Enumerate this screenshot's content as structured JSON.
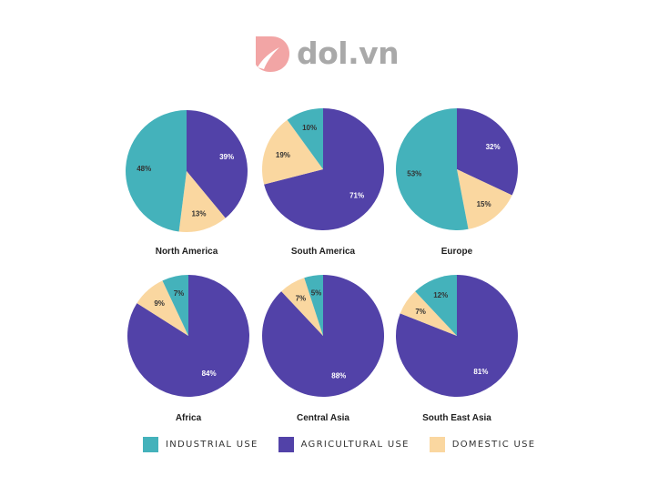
{
  "logo": {
    "text": "dol.vn"
  },
  "colors": {
    "industrial": "#44b2bb",
    "agricultural": "#5242a8",
    "domestic": "#fad7a0"
  },
  "legend": [
    {
      "label": "INDUSTRIAL USE",
      "key": "industrial"
    },
    {
      "label": "AGRICULTURAL USE",
      "key": "agricultural"
    },
    {
      "label": "DOMESTIC USE",
      "key": "domestic"
    }
  ],
  "chart_data": [
    {
      "type": "pie",
      "title": "North America",
      "categories": [
        "INDUSTRIAL USE",
        "AGRICULTURAL USE",
        "DOMESTIC USE"
      ],
      "values": [
        48,
        39,
        13
      ],
      "labels": [
        "48%",
        "39%",
        "13%"
      ]
    },
    {
      "type": "pie",
      "title": "South America",
      "categories": [
        "INDUSTRIAL USE",
        "AGRICULTURAL USE",
        "DOMESTIC USE"
      ],
      "values": [
        10,
        71,
        19
      ],
      "labels": [
        "10%",
        "71%",
        "19%"
      ]
    },
    {
      "type": "pie",
      "title": "Europe",
      "categories": [
        "INDUSTRIAL USE",
        "AGRICULTURAL USE",
        "DOMESTIC USE"
      ],
      "values": [
        53,
        32,
        15
      ],
      "labels": [
        "53%",
        "32%",
        "15%"
      ]
    },
    {
      "type": "pie",
      "title": "Africa",
      "categories": [
        "INDUSTRIAL USE",
        "AGRICULTURAL USE",
        "DOMESTIC USE"
      ],
      "values": [
        7,
        84,
        9
      ],
      "labels": [
        "7%",
        "84%",
        "9%"
      ]
    },
    {
      "type": "pie",
      "title": "Central Asia",
      "categories": [
        "INDUSTRIAL USE",
        "AGRICULTURAL USE",
        "DOMESTIC USE"
      ],
      "values": [
        5,
        88,
        7
      ],
      "labels": [
        "5%",
        "88%",
        "7%"
      ]
    },
    {
      "type": "pie",
      "title": "South East Asia",
      "categories": [
        "INDUSTRIAL USE",
        "AGRICULTURAL USE",
        "DOMESTIC USE"
      ],
      "values": [
        12,
        81,
        7
      ],
      "labels": [
        "12%",
        "81%",
        "7%"
      ]
    }
  ]
}
